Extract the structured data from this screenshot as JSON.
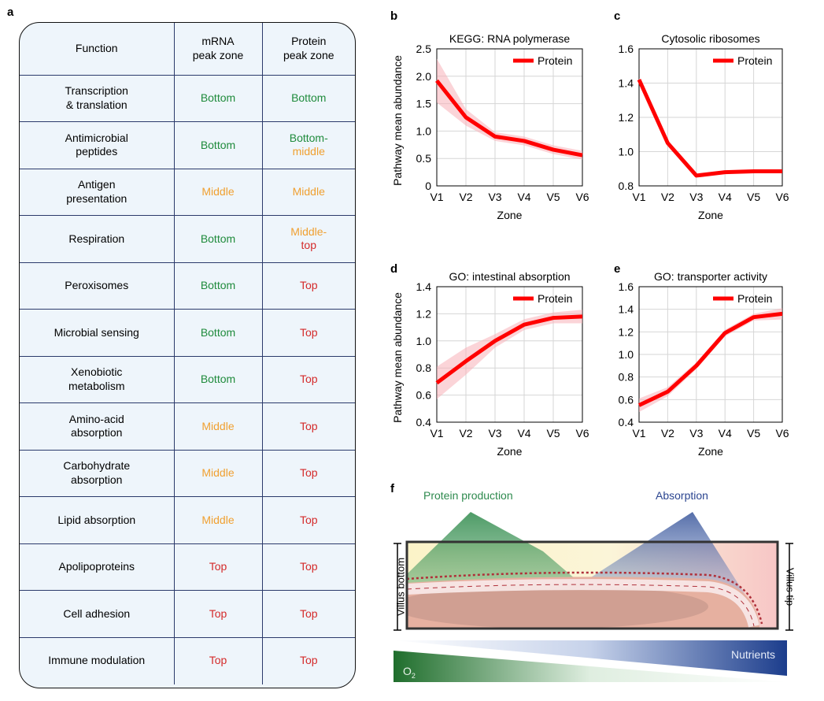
{
  "panel_letters": {
    "a": "a",
    "b": "b",
    "c": "c",
    "d": "d",
    "e": "e",
    "f": "f"
  },
  "colors": {
    "bottom": "#1f8b3c",
    "middle": "#f0a030",
    "top": "#d42a2a",
    "grid_line": "#2b3a6b",
    "protein_line": "#ff0000"
  },
  "table": {
    "headers": [
      "Function",
      "mRNA\npeak zone",
      "Protein\npeak zone"
    ],
    "rows": [
      {
        "function": "Transcription\n& translation",
        "mrna": "Bottom",
        "mrna_level": "bottom",
        "protein": "Bottom",
        "protein_level": "bottom"
      },
      {
        "function": "Antimicrobial\npeptides",
        "mrna": "Bottom",
        "mrna_level": "bottom",
        "protein": "Bottom-\nmiddle",
        "protein_level": "bottom-middle"
      },
      {
        "function": "Antigen\npresentation",
        "mrna": "Middle",
        "mrna_level": "middle",
        "protein": "Middle",
        "protein_level": "middle"
      },
      {
        "function": "Respiration",
        "mrna": "Bottom",
        "mrna_level": "bottom",
        "protein": "Middle-\ntop",
        "protein_level": "middle-top"
      },
      {
        "function": "Peroxisomes",
        "mrna": "Bottom",
        "mrna_level": "bottom",
        "protein": "Top",
        "protein_level": "top"
      },
      {
        "function": "Microbial sensing",
        "mrna": "Bottom",
        "mrna_level": "bottom",
        "protein": "Top",
        "protein_level": "top"
      },
      {
        "function": "Xenobiotic\nmetabolism",
        "mrna": "Bottom",
        "mrna_level": "bottom",
        "protein": "Top",
        "protein_level": "top"
      },
      {
        "function": "Amino-acid\nabsorption",
        "mrna": "Middle",
        "mrna_level": "middle",
        "protein": "Top",
        "protein_level": "top"
      },
      {
        "function": "Carbohydrate\nabsorption",
        "mrna": "Middle",
        "mrna_level": "middle",
        "protein": "Top",
        "protein_level": "top"
      },
      {
        "function": "Lipid absorption",
        "mrna": "Middle",
        "mrna_level": "middle",
        "protein": "Top",
        "protein_level": "top"
      },
      {
        "function": "Apolipoproteins",
        "mrna": "Top",
        "mrna_level": "top",
        "protein": "Top",
        "protein_level": "top"
      },
      {
        "function": "Cell adhesion",
        "mrna": "Top",
        "mrna_level": "top",
        "protein": "Top",
        "protein_level": "top"
      },
      {
        "function": "Immune modulation",
        "mrna": "Top",
        "mrna_level": "top",
        "protein": "Top",
        "protein_level": "top"
      }
    ]
  },
  "chart_data": [
    {
      "id": "b",
      "type": "line",
      "title": "KEGG: RNA polymerase",
      "xlabel": "Zone",
      "ylabel": "Pathway mean abundance",
      "categories": [
        "V1",
        "V2",
        "V3",
        "V4",
        "V5",
        "V6"
      ],
      "ylim": [
        0,
        2.5
      ],
      "yticks": [
        "0",
        "0.5",
        "1.0",
        "1.5",
        "2.0",
        "2.5"
      ],
      "ytick_values": [
        0,
        0.5,
        1.0,
        1.5,
        2.0,
        2.5
      ],
      "grid": true,
      "legend": "top-right",
      "series": [
        {
          "name": "Protein",
          "values": [
            1.92,
            1.25,
            0.9,
            0.82,
            0.66,
            0.56
          ],
          "band": [
            0.4,
            0.15,
            0.08,
            0.08,
            0.08,
            0.08
          ]
        }
      ]
    },
    {
      "id": "c",
      "type": "line",
      "title": "Cytosolic ribosomes",
      "xlabel": "Zone",
      "ylabel": "",
      "categories": [
        "V1",
        "V2",
        "V3",
        "V4",
        "V5",
        "V6"
      ],
      "ylim": [
        0.8,
        1.6
      ],
      "yticks": [
        "0.8",
        "1.0",
        "1.2",
        "1.4",
        "1.6"
      ],
      "ytick_values": [
        0.8,
        1.0,
        1.2,
        1.4,
        1.6
      ],
      "grid": true,
      "legend": "top-right",
      "series": [
        {
          "name": "Protein",
          "values": [
            1.42,
            1.05,
            0.86,
            0.88,
            0.885,
            0.885
          ],
          "band": [
            0.01,
            0.01,
            0.01,
            0.01,
            0.01,
            0.01
          ]
        }
      ]
    },
    {
      "id": "d",
      "type": "line",
      "title": "GO: intestinal absorption",
      "xlabel": "Zone",
      "ylabel": "Pathway mean abundance",
      "categories": [
        "V1",
        "V2",
        "V3",
        "V4",
        "V5",
        "V6"
      ],
      "ylim": [
        0.4,
        1.4
      ],
      "yticks": [
        "0.4",
        "0.6",
        "0.8",
        "1.0",
        "1.2",
        "1.4"
      ],
      "ytick_values": [
        0.4,
        0.6,
        0.8,
        1.0,
        1.2,
        1.4
      ],
      "grid": true,
      "legend": "top-right",
      "series": [
        {
          "name": "Protein",
          "values": [
            0.69,
            0.85,
            1.0,
            1.12,
            1.17,
            1.18
          ],
          "band": [
            0.12,
            0.1,
            0.05,
            0.04,
            0.04,
            0.05
          ]
        }
      ]
    },
    {
      "id": "e",
      "type": "line",
      "title": "GO: transporter activity",
      "xlabel": "Zone",
      "ylabel": "",
      "categories": [
        "V1",
        "V2",
        "V3",
        "V4",
        "V5",
        "V6"
      ],
      "ylim": [
        0.4,
        1.6
      ],
      "yticks": [
        "0.4",
        "0.6",
        "0.8",
        "1.0",
        "1.2",
        "1.4",
        "1.6"
      ],
      "ytick_values": [
        0.4,
        0.6,
        0.8,
        1.0,
        1.2,
        1.4,
        1.6
      ],
      "grid": true,
      "legend": "top-right",
      "series": [
        {
          "name": "Protein",
          "values": [
            0.55,
            0.67,
            0.9,
            1.19,
            1.33,
            1.36
          ],
          "band": [
            0.06,
            0.04,
            0.03,
            0.03,
            0.03,
            0.05
          ]
        }
      ]
    }
  ],
  "schematic": {
    "protein_production": "Protein production",
    "absorption": "Absorption",
    "villus_bottom": "Villus bottom",
    "villus_tip": "Villus tip",
    "nutrients": "Nutrients",
    "oxygen_main": "O",
    "oxygen_sub": "2"
  }
}
